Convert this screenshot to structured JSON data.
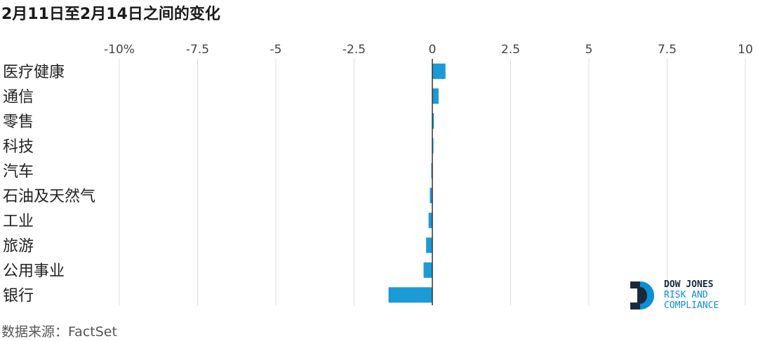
{
  "title": "2月11日至2月14日之间的变化",
  "source": "数据来源：FactSet",
  "logo": {
    "line1": "DOW JONES",
    "line2": "RISK AND",
    "line3": "COMPLIANCE",
    "colors": {
      "dark": "#1a2a3a",
      "blue": "#0b8fd6"
    }
  },
  "chart_data": {
    "type": "bar",
    "orientation": "horizontal",
    "categories": [
      "医疗健康",
      "通信",
      "零售",
      "科技",
      "汽车",
      "石油及天然气",
      "工业",
      "旅游",
      "公用事业",
      "银行"
    ],
    "values": [
      0.42,
      0.2,
      0.05,
      0.02,
      -0.03,
      -0.08,
      -0.12,
      -0.2,
      -0.28,
      -1.4
    ],
    "xlim": [
      -10,
      10
    ],
    "ticks": [
      -10,
      -7.5,
      -5,
      -2.5,
      0,
      2.5,
      5,
      7.5,
      10
    ],
    "tick_labels": [
      "-10%",
      "-7.5",
      "-5",
      "-2.5",
      "0",
      "2.5",
      "5",
      "7.5",
      "10"
    ],
    "grid": true,
    "bar_color": "#1c9ad6",
    "grid_color": "#dcdcdc",
    "zero_line_color": "#333333"
  }
}
